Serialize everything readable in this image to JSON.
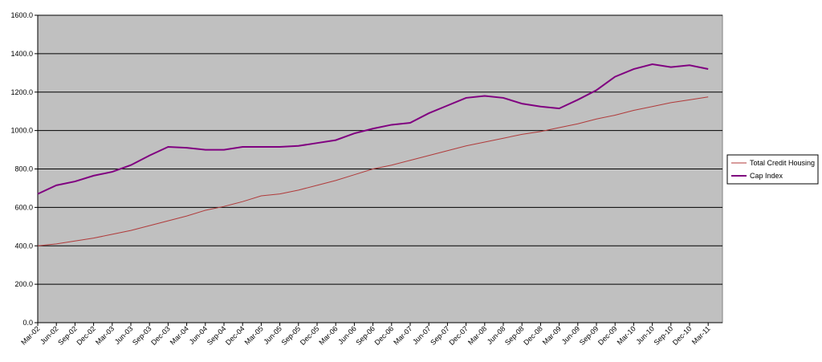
{
  "chart_data": {
    "type": "line",
    "categories": [
      "Mar-02",
      "Jun-02",
      "Sep-02",
      "Dec-02",
      "Mar-03",
      "Jun-03",
      "Sep-03",
      "Dec-03",
      "Mar-04",
      "Jun-04",
      "Sep-04",
      "Dec-04",
      "Mar-05",
      "Jun-05",
      "Sep-05",
      "Dec-05",
      "Mar-06",
      "Jun-06",
      "Sep-06",
      "Dec-06",
      "Mar-07",
      "Jun-07",
      "Sep-07",
      "Dec-07",
      "Mar-08",
      "Jun-08",
      "Sep-08",
      "Dec-08",
      "Mar-09",
      "Jun-09",
      "Sep-09",
      "Dec-09",
      "Mar-10",
      "Jun-10",
      "Sep-10",
      "Dec-10",
      "Mar-11"
    ],
    "series": [
      {
        "name": "Total Credit Housing",
        "color": "#b03a3a",
        "width": 1,
        "values": [
          400,
          410,
          425,
          440,
          460,
          480,
          505,
          530,
          555,
          585,
          605,
          630,
          660,
          670,
          690,
          715,
          740,
          770,
          800,
          820,
          845,
          870,
          895,
          920,
          940,
          960,
          980,
          995,
          1015,
          1035,
          1060,
          1080,
          1105,
          1125,
          1145,
          1160,
          1175
        ]
      },
      {
        "name": "Cap Index",
        "color": "#800080",
        "width": 2,
        "values": [
          670,
          715,
          735,
          765,
          785,
          820,
          870,
          915,
          910,
          900,
          900,
          915,
          915,
          915,
          920,
          935,
          950,
          985,
          1010,
          1030,
          1040,
          1090,
          1130,
          1170,
          1180,
          1170,
          1140,
          1125,
          1115,
          1160,
          1210,
          1280,
          1320,
          1345,
          1330,
          1340,
          1320
        ]
      }
    ],
    "ylim": [
      0,
      1600
    ],
    "yticks": [
      {
        "value": 0,
        "label": "0.0"
      },
      {
        "value": 200,
        "label": "200.0"
      },
      {
        "value": 400,
        "label": "400.0"
      },
      {
        "value": 600,
        "label": "600.0"
      },
      {
        "value": 800,
        "label": "800.0"
      },
      {
        "value": 1000,
        "label": "1000.0"
      },
      {
        "value": 1200,
        "label": "1200.0"
      },
      {
        "value": 1400,
        "label": "1400.0"
      },
      {
        "value": 1600,
        "label": "1600.0"
      }
    ],
    "grid": true,
    "background": "#c0c0c0",
    "legend": "right"
  }
}
